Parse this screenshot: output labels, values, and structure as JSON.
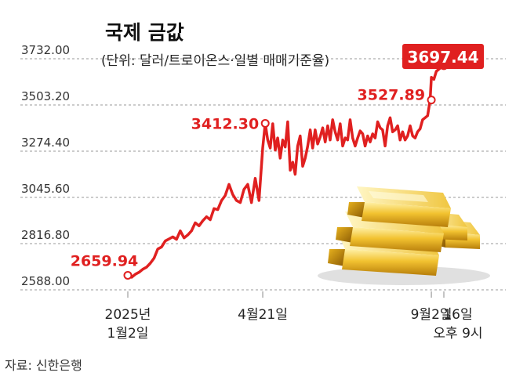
{
  "chart_data": {
    "type": "line",
    "title": "국제 금값",
    "subtitle": "(단위: 달러/트로이온스·일별 매매기준율)",
    "source": "자료: 신한은행",
    "ylim": [
      2588.0,
      3732.0
    ],
    "yticks": [
      "3732.00",
      "3503.20",
      "3274.40",
      "3045.60",
      "2816.80",
      "2588.00"
    ],
    "grid": true,
    "xticks": [
      {
        "x": 0,
        "lines": [
          "2025년",
          "1월2일"
        ]
      },
      {
        "x": 108,
        "lines": [
          "4월21일"
        ]
      },
      {
        "x": 243,
        "lines": [
          "9월2일"
        ]
      },
      {
        "x": 253,
        "lines": [
          "16일",
          "오후 9시"
        ]
      }
    ],
    "series": [
      {
        "color": "#e02020",
        "x": [
          0,
          3,
          6,
          9,
          12,
          15,
          18,
          21,
          24,
          27,
          30,
          33,
          36,
          39,
          42,
          45,
          48,
          51,
          54,
          57,
          60,
          63,
          66,
          69,
          72,
          75,
          78,
          81,
          84,
          87,
          90,
          93,
          96,
          99,
          102,
          105,
          108,
          110,
          112,
          114,
          116,
          118,
          120,
          122,
          124,
          126,
          128,
          130,
          132,
          134,
          136,
          138,
          140,
          142,
          144,
          146,
          148,
          150,
          152,
          154,
          156,
          158,
          160,
          162,
          164,
          166,
          168,
          170,
          172,
          174,
          176,
          178,
          180,
          182,
          184,
          186,
          188,
          190,
          192,
          194,
          196,
          198,
          200,
          202,
          204,
          206,
          208,
          210,
          212,
          214,
          216,
          218,
          220,
          222,
          224,
          226,
          228,
          230,
          232,
          234,
          236,
          238,
          240,
          242,
          243,
          245,
          247,
          249,
          251,
          253
        ],
        "values": [
          2659.94,
          2650,
          2665,
          2675,
          2690,
          2700,
          2720,
          2745,
          2790,
          2800,
          2830,
          2840,
          2850,
          2838,
          2880,
          2845,
          2860,
          2880,
          2920,
          2905,
          2930,
          2950,
          2935,
          2990,
          2985,
          3030,
          3055,
          3110,
          3060,
          3030,
          3020,
          3085,
          3110,
          3020,
          3140,
          3030,
          3290,
          3412.3,
          3330,
          3290,
          3410,
          3280,
          3340,
          3240,
          3330,
          3295,
          3420,
          3180,
          3220,
          3160,
          3300,
          3350,
          3200,
          3240,
          3300,
          3380,
          3290,
          3380,
          3310,
          3345,
          3390,
          3320,
          3400,
          3330,
          3430,
          3370,
          3330,
          3410,
          3300,
          3340,
          3330,
          3430,
          3340,
          3300,
          3340,
          3375,
          3360,
          3300,
          3350,
          3320,
          3360,
          3340,
          3420,
          3390,
          3380,
          3300,
          3400,
          3440,
          3370,
          3380,
          3400,
          3330,
          3370,
          3330,
          3350,
          3400,
          3350,
          3340,
          3370,
          3385,
          3430,
          3440,
          3450,
          3527.89,
          3640,
          3630,
          3670,
          3680,
          3690,
          3697.44
        ]
      }
    ],
    "annotations": [
      {
        "x": 0,
        "value": 2659.94,
        "label": "2659.94"
      },
      {
        "x": 110,
        "value": 3412.3,
        "label": "3412.30"
      },
      {
        "x": 243,
        "value": 3527.89,
        "label": "3527.89"
      },
      {
        "x": 253,
        "value": 3697.44,
        "label": "3697.44",
        "highlight": true
      }
    ]
  }
}
